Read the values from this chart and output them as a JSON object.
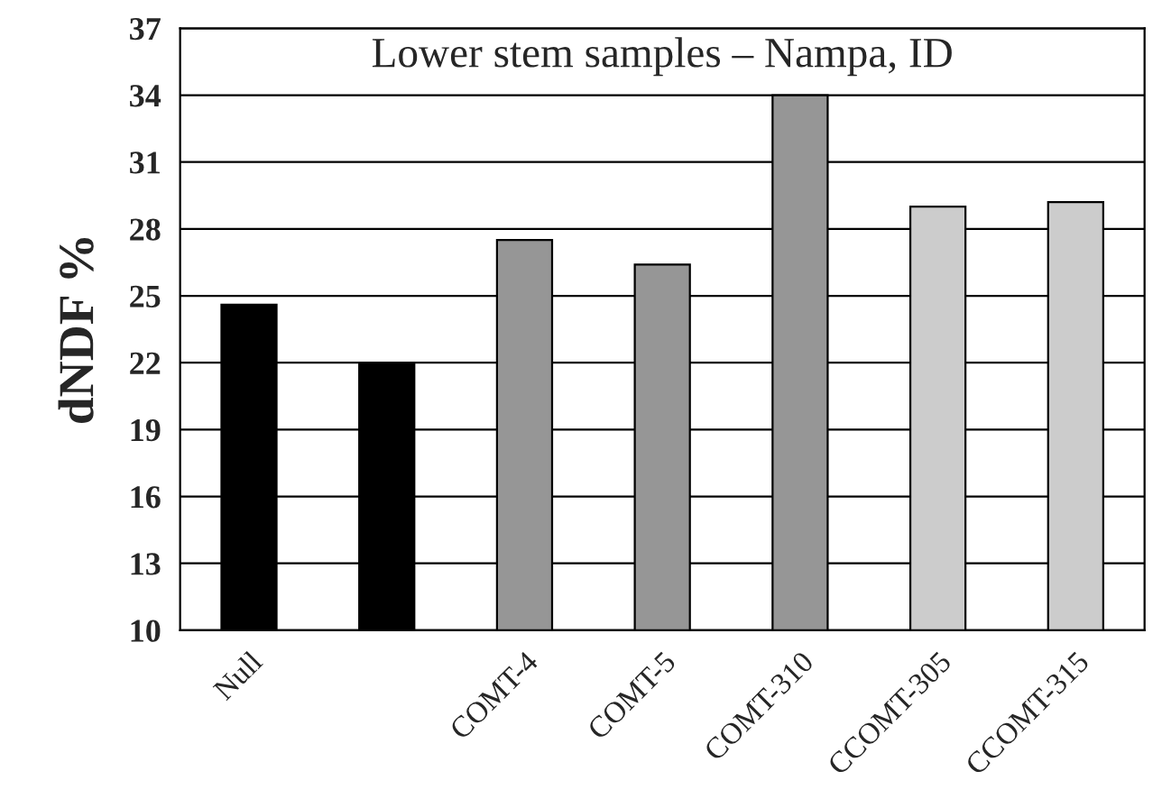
{
  "chart_data": {
    "type": "bar",
    "title": "Lower stem samples – Nampa, ID",
    "ylabel": "dNDF %",
    "categories": [
      "Null",
      null,
      "COMT-4",
      "COMT-5",
      "COMT-310",
      "CCOMT-305",
      "CCOMT-315"
    ],
    "values": [
      24.6,
      22.0,
      27.5,
      26.4,
      34.0,
      29.0,
      29.2
    ],
    "colors": [
      "#000000",
      "#000000",
      "#969696",
      "#969696",
      "#969696",
      "#cccccc",
      "#cccccc"
    ],
    "ylim": [
      10,
      37
    ],
    "yticks": [
      10,
      13,
      16,
      19,
      22,
      25,
      28,
      31,
      34,
      37
    ],
    "grid": "y"
  }
}
